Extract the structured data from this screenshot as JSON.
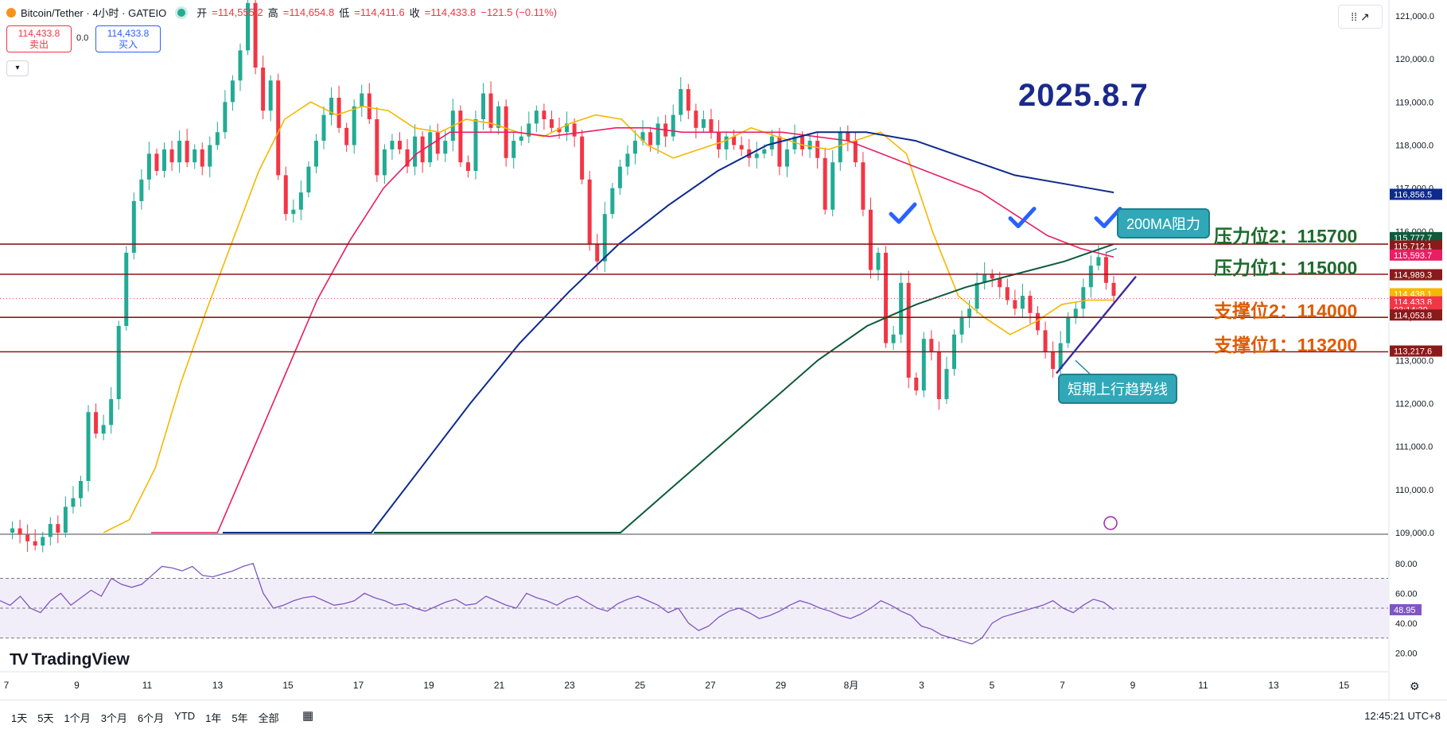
{
  "header": {
    "symbol": "Bitcoin/Tether · 4小时 · GATEIO",
    "open_label": "开",
    "open": "=114,555.2",
    "high_label": "高",
    "high": "=114,654.8",
    "low_label": "低",
    "low": "=114,411.6",
    "close_label": "收",
    "close": "=114,433.8",
    "change": "−121.5 (−0.11%)"
  },
  "trade": {
    "sell_price": "114,433.8",
    "sell_label": "卖出",
    "spread": "0.0",
    "buy_price": "114,433.8",
    "buy_label": "买入"
  },
  "annotations": {
    "date": "2025.8.7",
    "ma_callout": "200MA阻力",
    "trend_callout": "短期上行趋势线",
    "resistance2": "压力位2：115700",
    "resistance1": "压力位1：115000",
    "support2": "支撑位2：114000",
    "support1": "支撑位1：113200"
  },
  "branding": {
    "logo_text": "TradingView"
  },
  "bottom_bar": {
    "periods": [
      "1天",
      "5天",
      "1个月",
      "3个月",
      "6个月",
      "YTD",
      "1年",
      "5年",
      "全部"
    ],
    "clock": "12:45:21 UTC+8"
  },
  "colors": {
    "up": "#22ab94",
    "down": "#f23645",
    "ma_short": "#f5b800",
    "ma_mid": "#e91e63",
    "ma_long": "#0d2a8c",
    "ma_200": "#0e5a3a",
    "level_line": "#8b1a1a",
    "rsi": "#7e57c2",
    "trend": "#3b2a9c"
  },
  "chart_data": {
    "type": "candlestick",
    "symbol": "Bitcoin/Tether",
    "timeframe": "4小时",
    "price_axis": {
      "min": 109000,
      "max": 121000,
      "ticks": [
        "121,000.0",
        "120,000.0",
        "119,000.0",
        "118,000.0",
        "117,000.0",
        "116,000.0",
        "115,000.0",
        "114,000.0",
        "113,000.0",
        "112,000.0",
        "111,000.0",
        "110,000.0",
        "109,000.0"
      ]
    },
    "time_axis": {
      "labels": [
        "7",
        "9",
        "11",
        "13",
        "15",
        "17",
        "19",
        "21",
        "23",
        "25",
        "27",
        "29",
        "8月",
        "3",
        "5",
        "7",
        "9",
        "11",
        "13",
        "15"
      ]
    },
    "price_labels": [
      {
        "value": "116,856.5",
        "color": "#0d2a8c"
      },
      {
        "value": "115,777.7",
        "color": "#0e5a3a"
      },
      {
        "value": "115,712.1",
        "color": "#8b1a1a"
      },
      {
        "value": "115,593.7",
        "color": "#e91e63"
      },
      {
        "value": "114,989.3",
        "color": "#8b1a1a"
      },
      {
        "value": "114,438.1",
        "color": "#f5b800"
      },
      {
        "value": "114,433.8",
        "color": "#f23645"
      },
      {
        "value": "03:14:39",
        "color": "#f23645"
      },
      {
        "value": "114,053.8",
        "color": "#8b1a1a"
      },
      {
        "value": "113,217.6",
        "color": "#8b1a1a"
      }
    ],
    "levels": [
      {
        "name": "压力位2",
        "value": 115700
      },
      {
        "name": "压力位1",
        "value": 115000
      },
      {
        "name": "支撑位2",
        "value": 114000
      },
      {
        "name": "支撑位1",
        "value": 113200
      }
    ],
    "close_path": [
      109000,
      109100,
      108950,
      108800,
      108700,
      108900,
      109200,
      109000,
      109600,
      109800,
      110200,
      111800,
      111300,
      111500,
      112100,
      113800,
      115500,
      116700,
      117200,
      117800,
      117400,
      117900,
      117600,
      118100,
      117600,
      117900,
      117500,
      118000,
      118300,
      119000,
      119500,
      120200,
      121300,
      119800,
      118800,
      119500,
      117300,
      116400,
      116500,
      116900,
      117500,
      118100,
      118700,
      119100,
      118400,
      118000,
      118900,
      119200,
      118600,
      117300,
      117900,
      118100,
      117900,
      117500,
      118200,
      117600,
      118300,
      117800,
      118100,
      118800,
      117600,
      117400,
      118600,
      119200,
      118400,
      118900,
      117700,
      118100,
      118200,
      118500,
      118800,
      118600,
      118400,
      118300,
      118500,
      118200,
      117200,
      115700,
      115300,
      116400,
      117000,
      117500,
      117800,
      118100,
      118300,
      118000,
      118500,
      118200,
      118700,
      119300,
      118800,
      118400,
      118600,
      118300,
      117900,
      118200,
      118000,
      117900,
      117700,
      117800,
      117900,
      118200,
      117500,
      117900,
      118200,
      117900,
      118100,
      117700,
      116500,
      117600,
      118300,
      118100,
      117600,
      116500,
      115100,
      115500,
      113400,
      113600,
      114800,
      112600,
      112300,
      113500,
      113200,
      112100,
      112800,
      113600,
      114000,
      114200,
      114800,
      115000,
      114900,
      114700,
      114400,
      114200,
      114500,
      114100,
      113700,
      113200,
      112800,
      113400,
      114000,
      114200,
      114700,
      115200,
      115400,
      114800,
      114500
    ],
    "moving_averages": [
      {
        "period_hint": "短期",
        "color": "#f5b800",
        "path": [
          109000,
          109300,
          110500,
          112500,
          114200,
          115800,
          117400,
          118600,
          119000,
          118700,
          118900,
          118800,
          118400,
          118300,
          118600,
          118500,
          118300,
          118200,
          118500,
          118700,
          118600,
          118000,
          117700,
          117900,
          118100,
          118400,
          118200,
          118000,
          117900,
          118100,
          118300,
          117800,
          116000,
          114500,
          114000,
          113600,
          113900,
          114300,
          114400,
          114400
        ]
      },
      {
        "period_hint": "中期",
        "color": "#e91e63",
        "path": [
          105000,
          107000,
          109000,
          110800,
          112600,
          114400,
          115800,
          117000,
          117800,
          118300,
          118300,
          118300,
          118200,
          118300,
          118400,
          118400,
          118300,
          118300,
          118300,
          118300,
          118200,
          118100,
          117800,
          117500,
          117200,
          116900,
          116400,
          115900,
          115600,
          115400
        ]
      },
      {
        "period_hint": "长期",
        "color": "#0d2a8c",
        "path": [
          103000,
          105000,
          107000,
          108800,
          110500,
          112000,
          113400,
          114600,
          115700,
          116600,
          117400,
          118000,
          118300,
          118300,
          118100,
          117700,
          117300,
          117100,
          116900
        ]
      },
      {
        "period_hint": "200MA",
        "color": "#0e5a3a",
        "path": [
          100000,
          102000,
          104000,
          106000,
          108000,
          109000,
          110000,
          111000,
          112000,
          113000,
          113800,
          114300,
          114700,
          115000,
          115300,
          115700
        ]
      }
    ],
    "rsi": {
      "ticks": [
        "80.00",
        "60.00",
        "40.00",
        "20.00"
      ],
      "current": "48.95",
      "band": [
        30,
        70
      ],
      "path": [
        55,
        52,
        58,
        50,
        47,
        55,
        60,
        52,
        57,
        62,
        58,
        70,
        66,
        64,
        66,
        72,
        78,
        77,
        75,
        78,
        72,
        71,
        73,
        75,
        78,
        80,
        60,
        50,
        52,
        55,
        57,
        58,
        55,
        52,
        53,
        55,
        60,
        57,
        55,
        52,
        53,
        50,
        48,
        51,
        54,
        56,
        52,
        53,
        58,
        55,
        52,
        50,
        60,
        57,
        55,
        52,
        56,
        58,
        54,
        50,
        48,
        53,
        56,
        58,
        55,
        52,
        47,
        50,
        40,
        35,
        38,
        44,
        48,
        50,
        47,
        43,
        45,
        48,
        52,
        55,
        53,
        50,
        48,
        45,
        43,
        46,
        50,
        55,
        52,
        48,
        45,
        38,
        36,
        32,
        30,
        28,
        26,
        30,
        40,
        44,
        46,
        48,
        50,
        52,
        55,
        50,
        47,
        52,
        56,
        54,
        48.95
      ]
    }
  }
}
